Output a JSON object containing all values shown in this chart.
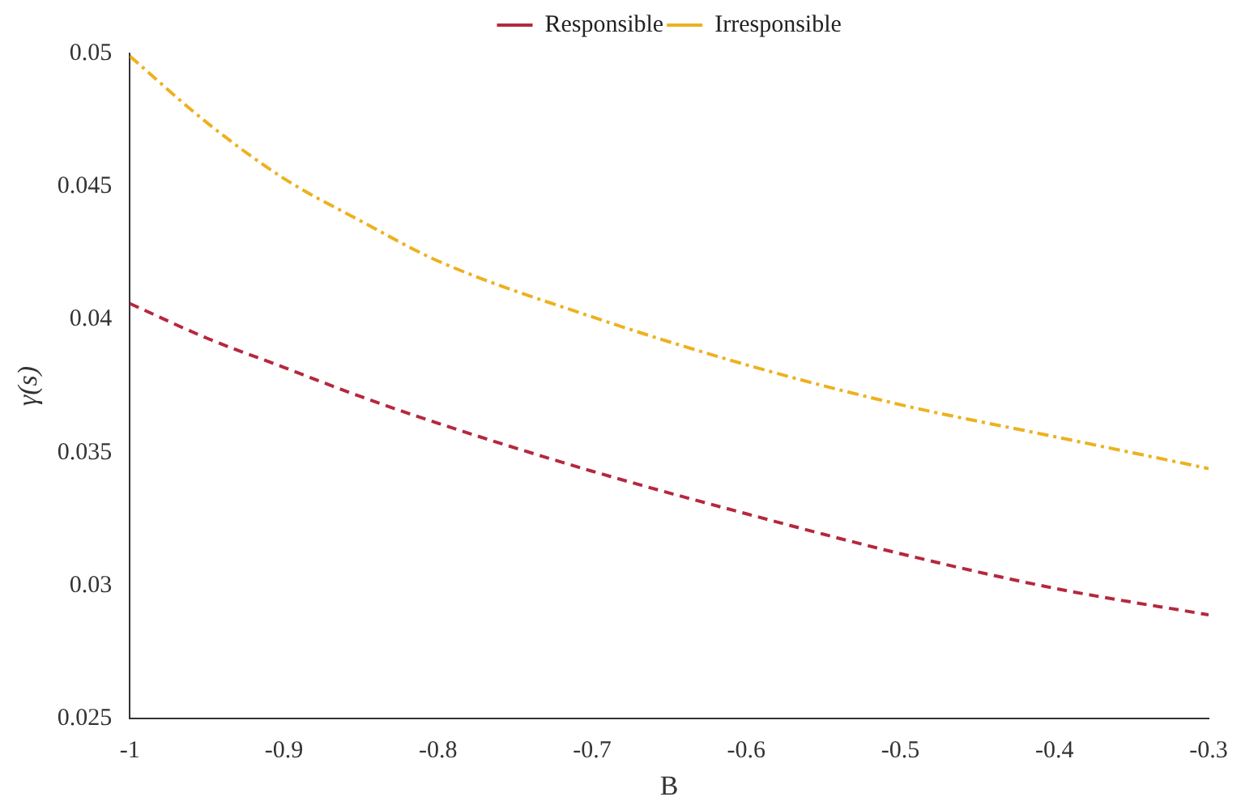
{
  "chart_data": {
    "type": "line",
    "xlabel": "B",
    "ylabel": "γ(s)",
    "x": [
      -1,
      -0.95,
      -0.9,
      -0.85,
      -0.8,
      -0.7,
      -0.6,
      -0.5,
      -0.4,
      -0.3
    ],
    "series": [
      {
        "name": "Responsible",
        "color": "#b5283f",
        "line_style": "dashed",
        "values": [
          0.0406,
          0.0393,
          0.0382,
          0.0371,
          0.0361,
          0.0343,
          0.0327,
          0.0312,
          0.0299,
          0.0289
        ]
      },
      {
        "name": "Irresponsible",
        "color": "#edb120",
        "line_style": "dashdot",
        "values": [
          0.0499,
          0.0474,
          0.0453,
          0.0437,
          0.0422,
          0.0401,
          0.0383,
          0.0368,
          0.0356,
          0.0344
        ]
      }
    ],
    "xlim": [
      -1,
      -0.3
    ],
    "xticks": [
      -1,
      -0.9,
      -0.8,
      -0.7,
      -0.6,
      -0.5,
      -0.4,
      -0.3
    ],
    "ylim": [
      0.025,
      0.05
    ],
    "yticks": [
      0.025,
      0.03,
      0.035,
      0.04,
      0.045,
      0.05
    ],
    "grid": false,
    "legend": "top",
    "marker": "none"
  }
}
